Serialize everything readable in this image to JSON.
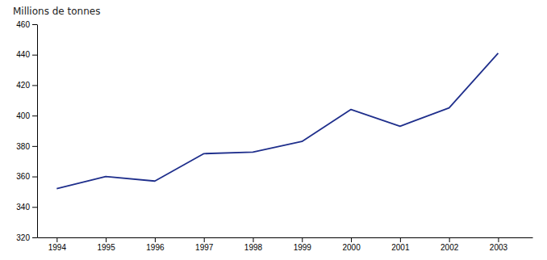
{
  "chart_data": {
    "type": "line",
    "ylabel": "Millions de tonnes",
    "x": [
      1994,
      1995,
      1996,
      1997,
      1998,
      1999,
      2000,
      2001,
      2002,
      2003
    ],
    "values": [
      352,
      360,
      357,
      375,
      376,
      383,
      404,
      393,
      405,
      441
    ],
    "color": "#1f2f8c",
    "xlim": [
      1993.6,
      2003.7
    ],
    "xticks": [
      1994,
      1995,
      1996,
      1997,
      1998,
      1999,
      2000,
      2001,
      2002,
      2003
    ],
    "ylim": [
      320,
      460
    ],
    "yticks": [
      320,
      340,
      360,
      380,
      400,
      420,
      440,
      460
    ],
    "grid": false
  }
}
